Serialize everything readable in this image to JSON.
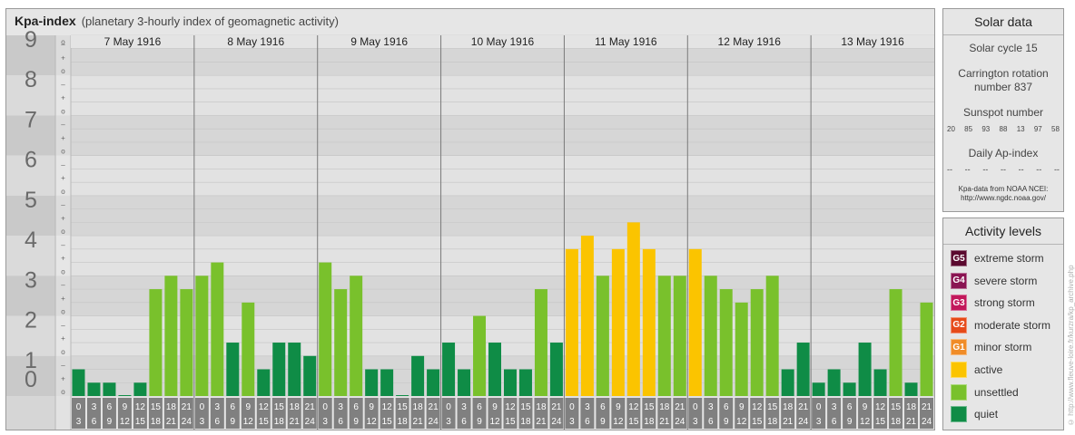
{
  "header": {
    "title": "Kpa-index",
    "subtitle": "(planetary 3-hourly index of geomagnetic activity)"
  },
  "chart_data": {
    "type": "bar",
    "ylim": [
      0,
      9
    ],
    "y_tick_labels": [
      "0",
      "1",
      "2",
      "3",
      "4",
      "5",
      "6",
      "7",
      "8",
      "9"
    ],
    "sub_tick_labels": [
      "o",
      "+",
      "–"
    ],
    "days": [
      "7 May 1916",
      "8 May 1916",
      "9 May 1916",
      "10 May 1916",
      "11 May 1916",
      "12 May 1916",
      "13 May 1916"
    ],
    "interval_start_labels": [
      "0",
      "3",
      "6",
      "9",
      "12",
      "15",
      "18",
      "21"
    ],
    "interval_end_labels": [
      "3",
      "6",
      "9",
      "12",
      "15",
      "18",
      "21",
      "24"
    ],
    "values": [
      0.667,
      0.333,
      0.333,
      0,
      0.333,
      2.667,
      3,
      2.667,
      3,
      3.333,
      1.333,
      2.333,
      0.667,
      1.333,
      1.333,
      1,
      3.333,
      2.667,
      3,
      0.667,
      0.667,
      0,
      1,
      0.667,
      1.333,
      0.667,
      2,
      1.333,
      0.667,
      0.667,
      2.667,
      1.333,
      3.667,
      4,
      3,
      3.667,
      4.333,
      3.667,
      3,
      3,
      3.667,
      3,
      2.667,
      2.333,
      2.667,
      3,
      0.667,
      1.333,
      0.333,
      0.667,
      0.333,
      1.333,
      0.667,
      2.667,
      0.333,
      2.333
    ],
    "colors": {
      "quiet": "#0f8c46",
      "unsettled": "#79c12c",
      "active": "#fbc400"
    }
  },
  "solar": {
    "title": "Solar data",
    "cycle": "Solar cycle 15",
    "carrington_line1": "Carrington rotation",
    "carrington_line2": "number 837",
    "sunspot_title": "Sunspot number",
    "sunspot_values": [
      "20",
      "85",
      "93",
      "88",
      "13",
      "97",
      "58"
    ],
    "ap_title": "Daily Ap-index",
    "ap_values": [
      "--",
      "--",
      "--",
      "--",
      "--",
      "--",
      "--"
    ],
    "credit_line1": "Kpa-data from NOAA NCEI:",
    "credit_line2": "http://www.ngdc.noaa.gov/"
  },
  "activity": {
    "title": "Activity levels",
    "levels": [
      {
        "code": "G5",
        "label": "extreme storm",
        "color": "#5b0a2f"
      },
      {
        "code": "G4",
        "label": "severe storm",
        "color": "#8a1452"
      },
      {
        "code": "G3",
        "label": "strong storm",
        "color": "#c2185b"
      },
      {
        "code": "G2",
        "label": "moderate storm",
        "color": "#e64a19"
      },
      {
        "code": "G1",
        "label": "minor storm",
        "color": "#f08c28"
      },
      {
        "code": "",
        "label": "active",
        "color": "#fbc400"
      },
      {
        "code": "",
        "label": "unsettled",
        "color": "#79c12c"
      },
      {
        "code": "",
        "label": "quiet",
        "color": "#0f8c46"
      }
    ]
  },
  "watermark": "© http://www.fleuve-loire.fr/kurzra/kp_archive.php"
}
